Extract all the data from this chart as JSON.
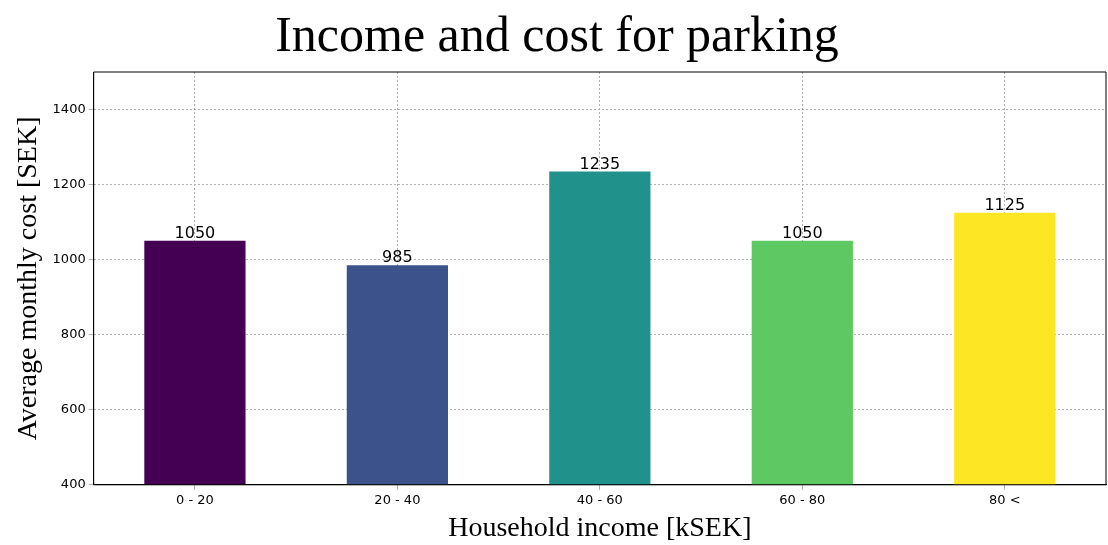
{
  "chart_data": {
    "type": "bar",
    "title": "Income and cost for parking",
    "xlabel": "Household income [kSEK]",
    "ylabel": "Average monthly cost [SEK]",
    "categories": [
      "0 - 20",
      "20 - 40",
      "40 - 60",
      "60 - 80",
      "80 <"
    ],
    "values": [
      1050,
      985,
      1235,
      1050,
      1125
    ],
    "colors": [
      "#440154",
      "#3b528b",
      "#21918c",
      "#5ec962",
      "#fde725"
    ],
    "ylim": [
      400,
      1500
    ],
    "yticks": [
      400,
      600,
      800,
      1000,
      1200,
      1400
    ],
    "grid": true,
    "data_labels": true,
    "legend": false
  }
}
